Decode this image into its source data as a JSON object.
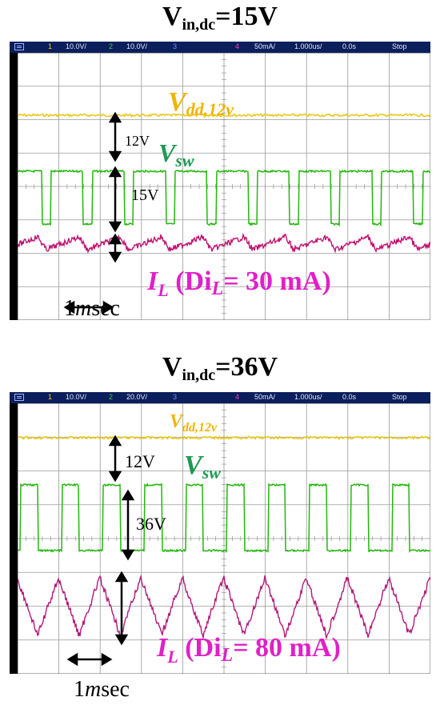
{
  "panels": [
    {
      "title_main": "V",
      "title_sub": "in,dc",
      "title_tail": "=15V",
      "header": {
        "ch1": "1",
        "ch1_scale": "10.0V/",
        "ch2": "2",
        "ch2_scale": "10.0V/",
        "ch3": "3",
        "ch4": "4",
        "ch4_scale": "50mA/",
        "time_scale": "1.000us/",
        "delay": "0.0s",
        "run_state": "Stop"
      },
      "label_vdd": "V",
      "label_vdd_sub": "dd,12v",
      "label_vsw": "V",
      "label_vsw_sub": "sw",
      "label_12v": "12V",
      "label_step": "15V",
      "label_il": "I",
      "label_il_sub": "L",
      "label_il_rest": " (Di",
      "label_il_sub2": "L",
      "label_il_tail": "= 30 mA)",
      "time_label_num": "1",
      "time_label_m": "m",
      "time_label_rest": "sec",
      "colors": {
        "vdd": "#e8c81a",
        "vsw": "#22b80c",
        "il": "#c0126f",
        "vsw_text": "#1f9a55",
        "il_text": "#e020c8",
        "vdd_text": "#f2b400"
      }
    },
    {
      "title_main": "V",
      "title_sub": "in,dc",
      "title_tail": "=36V",
      "header": {
        "ch1": "1",
        "ch1_scale": "10.0V/",
        "ch2": "2",
        "ch2_scale": "20.0V/",
        "ch3": "3",
        "ch4": "4",
        "ch4_scale": "50mA/",
        "time_scale": "1.000us/",
        "delay": "0.0s",
        "run_state": "Stop"
      },
      "label_vdd": "V",
      "label_vdd_sub": "dd,12v",
      "label_vsw": "V",
      "label_vsw_sub": "sw",
      "label_12v": "12V",
      "label_step": "36V",
      "label_il": "I",
      "label_il_sub": "L",
      "label_il_rest": " (Di",
      "label_il_sub2": "L",
      "label_il_tail": "= 80 mA)",
      "time_label_num": "1",
      "time_label_m": "m",
      "time_label_rest": "sec",
      "colors": {
        "vdd": "#e8c81a",
        "vsw": "#22b80c",
        "il": "#b01b7a",
        "vsw_text": "#1f9a55",
        "il_text": "#e020c8",
        "vdd_text": "#f2b400"
      }
    }
  ],
  "chart_data": [
    {
      "type": "line",
      "title": "Vin,dc=15V",
      "ch4_ripple_mA": 30,
      "vsw_step_V": 15,
      "vdd_V": 12,
      "series": [
        {
          "name": "Vdd,12v",
          "shape": "flat"
        },
        {
          "name": "Vsw",
          "shape": "square",
          "periods_visible": 10
        },
        {
          "name": "IL",
          "shape": "sawtooth",
          "ripple_mA": 30
        }
      ]
    },
    {
      "type": "line",
      "title": "Vin,dc=36V",
      "ch4_ripple_mA": 80,
      "vsw_step_V": 36,
      "vdd_V": 12,
      "series": [
        {
          "name": "Vdd,12v",
          "shape": "flat"
        },
        {
          "name": "Vsw",
          "shape": "square",
          "periods_visible": 10
        },
        {
          "name": "IL",
          "shape": "triangle",
          "ripple_mA": 80
        }
      ]
    }
  ]
}
